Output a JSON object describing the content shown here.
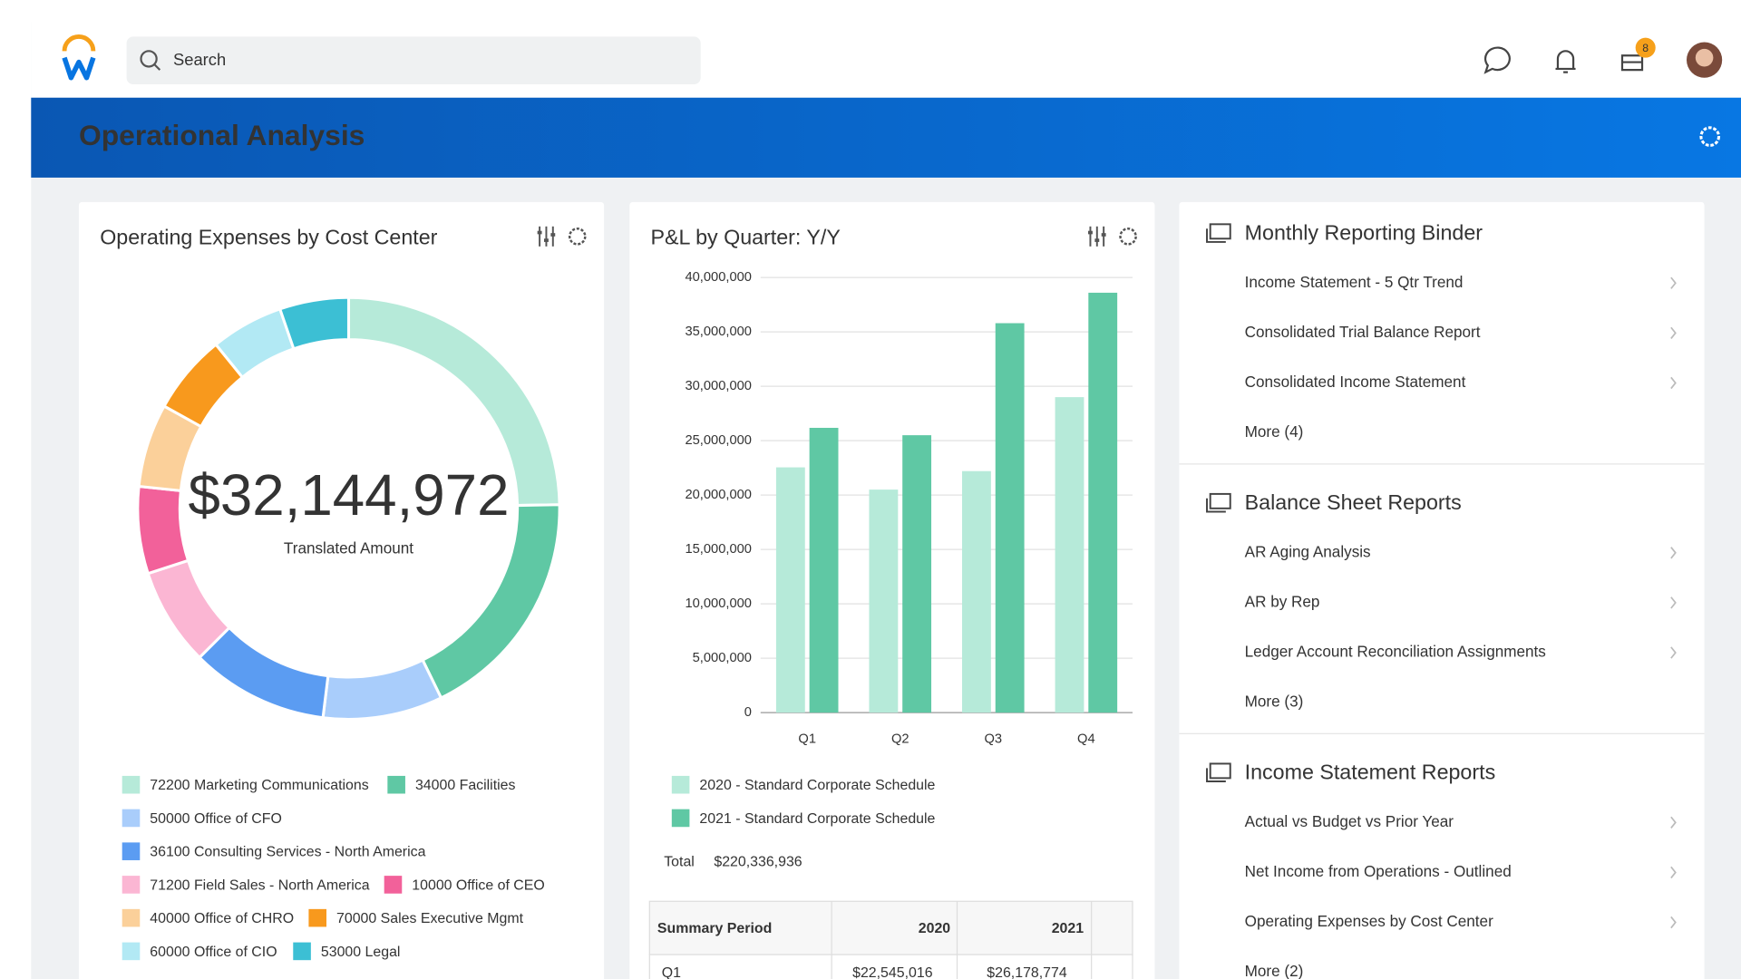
{
  "header": {
    "search_placeholder": "Search",
    "badge": "8"
  },
  "banner": {
    "title": "Operational Analysis"
  },
  "chart_data": [
    {
      "type": "donut",
      "title": "Operating Expenses by Cost Center",
      "center_value": "$32,144,972",
      "center_label": "Translated Amount",
      "categories": [
        "72200 Marketing Communications",
        "34000 Facilities",
        "50000 Office of CFO",
        "36100 Consulting Services - North America",
        "71200 Field Sales - North America",
        "10000 Office of CEO",
        "40000 Office of CHRO",
        "70000 Sales Executive Mgmt",
        "60000 Office of CIO",
        "53000 Legal"
      ],
      "values": [
        7947000,
        5804000,
        2947000,
        3393000,
        2411000,
        2143000,
        2054000,
        1964000,
        1786000,
        1697000
      ],
      "colors": [
        "#b6ead9",
        "#5fc8a4",
        "#a9cdfb",
        "#5b9cf2",
        "#fbb6d3",
        "#f2619a",
        "#fbd09a",
        "#f8991d",
        "#b2e9f4",
        "#3cbfd4"
      ]
    },
    {
      "type": "bar",
      "title": "P&L by Quarter: Y/Y",
      "categories": [
        "Q1",
        "Q2",
        "Q3",
        "Q4"
      ],
      "series": [
        {
          "name": "2020 - Standard Corporate Schedule",
          "color": "#b6ead9",
          "values": [
            22545016,
            20500000,
            22200000,
            29000000
          ]
        },
        {
          "name": "2021 - Standard Corporate Schedule",
          "color": "#5fc8a4",
          "values": [
            26178774,
            25500000,
            35800000,
            38600000
          ]
        }
      ],
      "ylim": [
        0,
        40000000
      ],
      "yticks": [
        0,
        {
          "value": 5000000,
          "label": "5,000,000"
        },
        {
          "value": 10000000,
          "label": "10,000,000"
        },
        {
          "value": 15000000,
          "label": "15,000,000"
        },
        {
          "value": 20000000,
          "label": "20,000,000"
        },
        {
          "value": 25000000,
          "label": "25,000,000"
        },
        {
          "value": 30000000,
          "label": "30,000,000"
        },
        {
          "value": 35000000,
          "label": "35,000,000"
        },
        {
          "value": 40000000,
          "label": "40,000,000"
        }
      ],
      "grid": true,
      "total_label": "Total",
      "total_value": "$220,336,936",
      "table": {
        "columns": [
          "Summary Period",
          "2020",
          "2021"
        ],
        "rows": [
          [
            "Q1",
            "$22,545,016",
            "$26,178,774"
          ]
        ]
      }
    }
  ],
  "reports": [
    {
      "title": "Monthly Reporting Binder",
      "items": [
        "Income Statement - 5 Qtr Trend",
        "Consolidated Trial Balance Report",
        "Consolidated Income Statement",
        "More (4)"
      ]
    },
    {
      "title": "Balance Sheet Reports",
      "items": [
        "AR Aging Analysis",
        "AR by Rep",
        "Ledger Account Reconciliation Assignments",
        "More (3)"
      ]
    },
    {
      "title": "Income Statement Reports",
      "items": [
        "Actual vs Budget vs Prior Year",
        "Net Income from Operations - Outlined",
        "Operating Expenses by Cost Center",
        "More (2)"
      ]
    }
  ]
}
